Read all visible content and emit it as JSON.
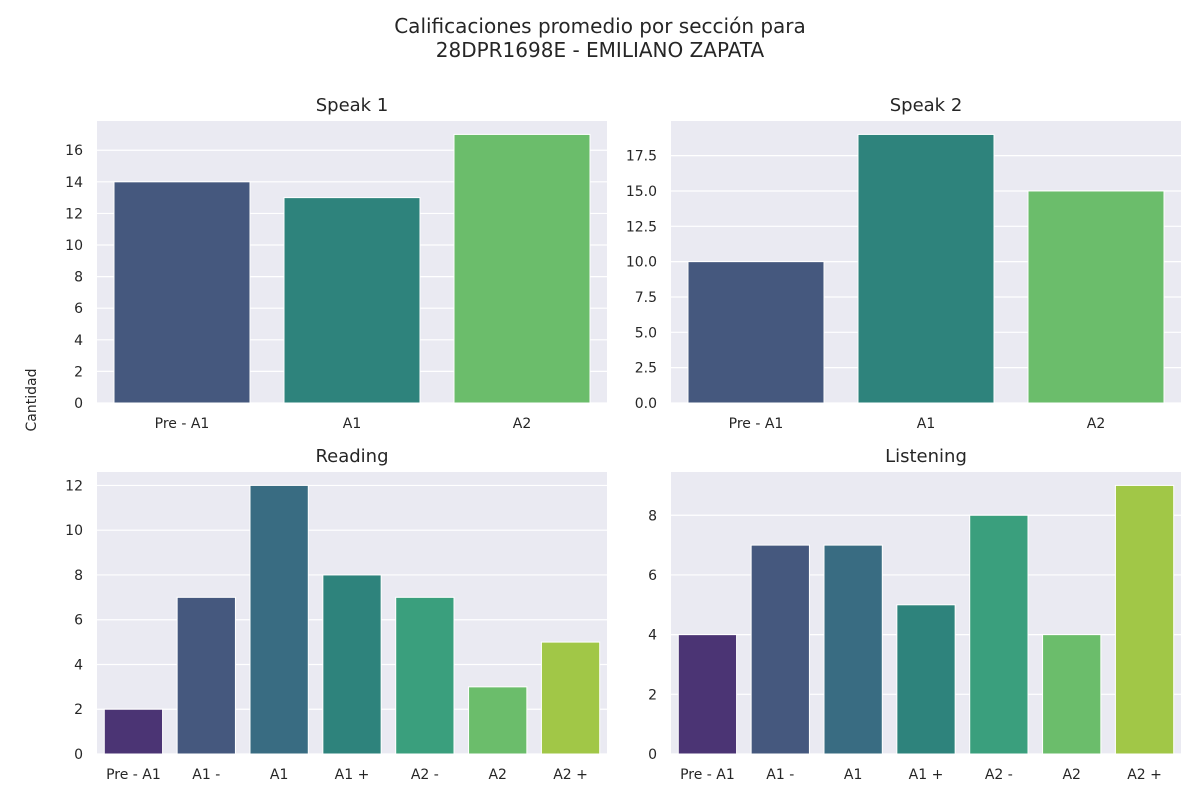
{
  "title_line1": "Calificaciones promedio por sección para",
  "title_line2": "28DPR1698E - EMILIANO ZAPATA",
  "ylabel": "Cantidad",
  "chart_data": [
    {
      "type": "bar",
      "title": "Speak 1",
      "categories": [
        "Pre - A1",
        "A1",
        "A2"
      ],
      "values": [
        14,
        13,
        17
      ],
      "ylim": [
        0,
        17.85
      ],
      "yticks": [
        0,
        2,
        4,
        6,
        8,
        10,
        12,
        14,
        16
      ],
      "ytick_labels": [
        "0",
        "2",
        "4",
        "6",
        "8",
        "10",
        "12",
        "14",
        "16"
      ],
      "colors": [
        "#45587e",
        "#2e837c",
        "#6bbd6b"
      ],
      "grid": true
    },
    {
      "type": "bar",
      "title": "Speak 2",
      "categories": [
        "Pre - A1",
        "A1",
        "A2"
      ],
      "values": [
        10,
        19,
        15
      ],
      "ylim": [
        0,
        19.95
      ],
      "yticks": [
        0,
        2.5,
        5,
        7.5,
        10,
        12.5,
        15,
        17.5
      ],
      "ytick_labels": [
        "0.0",
        "2.5",
        "5.0",
        "7.5",
        "10.0",
        "12.5",
        "15.0",
        "17.5"
      ],
      "colors": [
        "#45587e",
        "#2e837c",
        "#6bbd6b"
      ],
      "grid": true
    },
    {
      "type": "bar",
      "title": "Reading",
      "categories": [
        "Pre - A1",
        "A1 -",
        "A1",
        "A1 +",
        "A2 -",
        "A2",
        "A2 +"
      ],
      "values": [
        2,
        7,
        12,
        8,
        7,
        3,
        5
      ],
      "ylim": [
        0,
        12.6
      ],
      "yticks": [
        0,
        2,
        4,
        6,
        8,
        10,
        12
      ],
      "ytick_labels": [
        "0",
        "2",
        "4",
        "6",
        "8",
        "10",
        "12"
      ],
      "colors": [
        "#4b3474",
        "#45587e",
        "#396c82",
        "#2e837c",
        "#3a9f7d",
        "#6bbd6b",
        "#a1c747"
      ],
      "grid": true
    },
    {
      "type": "bar",
      "title": "Listening",
      "categories": [
        "Pre - A1",
        "A1 -",
        "A1",
        "A1 +",
        "A2 -",
        "A2",
        "A2 +"
      ],
      "values": [
        4,
        7,
        7,
        5,
        8,
        4,
        9
      ],
      "ylim": [
        0,
        9.45
      ],
      "yticks": [
        0,
        2,
        4,
        6,
        8
      ],
      "ytick_labels": [
        "0",
        "2",
        "4",
        "6",
        "8"
      ],
      "colors": [
        "#4b3474",
        "#45587e",
        "#396c82",
        "#2e837c",
        "#3a9f7d",
        "#6bbd6b",
        "#a1c747"
      ],
      "grid": true
    }
  ],
  "style": {
    "panel_background": "#eaeaf2",
    "grid_color": "#ffffff",
    "text_color": "#262626"
  }
}
